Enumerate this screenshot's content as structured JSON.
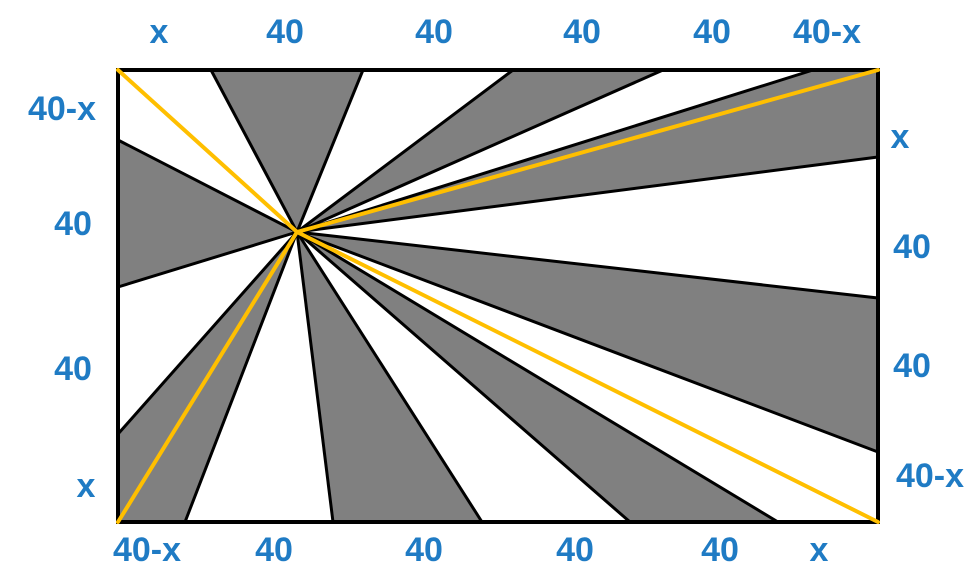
{
  "diagram": {
    "colors": {
      "shade": "#808080",
      "edge": "#000000",
      "highlight": "#ffbf00",
      "label": "#1f7bc4"
    },
    "labels": {
      "top": [
        "x",
        "40",
        "40",
        "40",
        "40",
        "40-x"
      ],
      "bottom": [
        "40-x",
        "40",
        "40",
        "40",
        "40",
        "x"
      ],
      "left": [
        "40-x",
        "40",
        "40",
        "x"
      ],
      "right": [
        "x",
        "40",
        "40",
        "40-x"
      ]
    }
  }
}
